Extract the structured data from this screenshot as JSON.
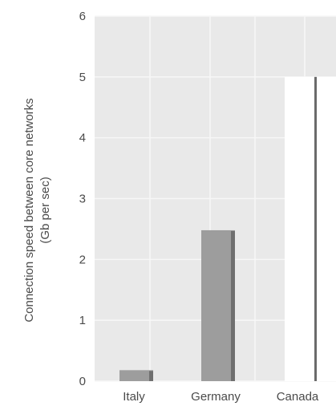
{
  "chart_data": {
    "type": "bar",
    "categories": [
      "Italy",
      "Germany",
      "Canada"
    ],
    "values": [
      0.18,
      2.48,
      5.0
    ],
    "title": "",
    "xlabel": "",
    "ylabel": "Connection speed between core networks",
    "ylabel_units": "(Gb per sec)",
    "ylim": [
      0,
      6
    ],
    "yticks": [
      0,
      1,
      2,
      3,
      4,
      5,
      6
    ],
    "grid": true,
    "legend": "none",
    "colors": {
      "plot_bg": "#e9e9e9",
      "grid": "#f7f7f7",
      "bar": "#9d9d9d",
      "bar_shadow": "#6f6f6f",
      "highlight_bg": "#ffffff",
      "highlight_line": "#6a6a6a"
    }
  }
}
